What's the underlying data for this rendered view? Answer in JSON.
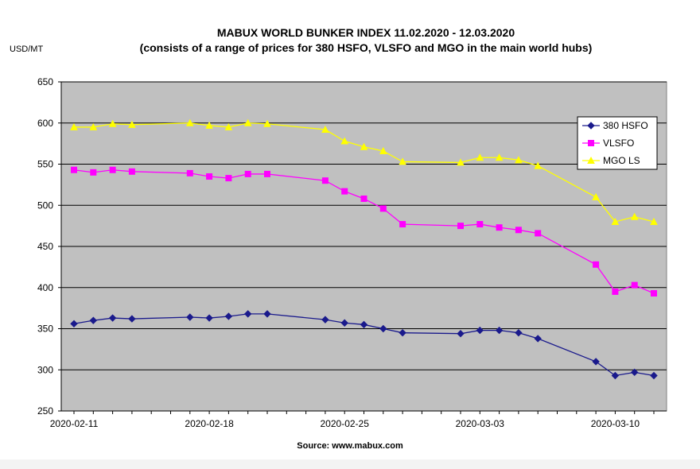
{
  "chart_data": {
    "type": "line",
    "title": "MABUX WORLD BUNKER INDEX 11.02.2020 - 12.03.2020",
    "subtitle": "(consists of a range of prices for 380 HSFO, VLSFO and MGO in the main world hubs)",
    "ylabel": "USD/MT",
    "xlabel": "",
    "ylim": [
      250,
      650
    ],
    "yticks": [
      250,
      300,
      350,
      400,
      450,
      500,
      550,
      600,
      650
    ],
    "x": [
      "2020-02-11",
      "2020-02-12",
      "2020-02-13",
      "2020-02-14",
      "2020-02-17",
      "2020-02-18",
      "2020-02-19",
      "2020-02-20",
      "2020-02-21",
      "2020-02-24",
      "2020-02-25",
      "2020-02-26",
      "2020-02-27",
      "2020-02-28",
      "2020-03-02",
      "2020-03-03",
      "2020-03-04",
      "2020-03-05",
      "2020-03-06",
      "2020-03-09",
      "2020-03-10",
      "2020-03-11",
      "2020-03-12"
    ],
    "xticks": [
      "2020-02-11",
      "2020-02-18",
      "2020-02-25",
      "2020-03-03",
      "2020-03-10"
    ],
    "grid": true,
    "legend_position": "top-right",
    "series": [
      {
        "name": "380 HSFO",
        "color": "#1a1a8c",
        "marker": "diamond",
        "values": [
          356,
          360,
          363,
          362,
          364,
          363,
          365,
          368,
          368,
          361,
          357,
          355,
          350,
          345,
          344,
          348,
          348,
          345,
          338,
          310,
          293,
          297,
          293
        ]
      },
      {
        "name": "VLSFO",
        "color": "#ff00ff",
        "marker": "square",
        "values": [
          543,
          540,
          543,
          541,
          539,
          535,
          533,
          538,
          538,
          530,
          517,
          508,
          496,
          477,
          475,
          477,
          473,
          470,
          466,
          428,
          395,
          403,
          393
        ]
      },
      {
        "name": "MGO LS",
        "color": "#ffff00",
        "marker": "triangle",
        "values": [
          595,
          595,
          599,
          598,
          600,
          597,
          595,
          600,
          599,
          592,
          578,
          571,
          566,
          553,
          552,
          558,
          558,
          555,
          548,
          510,
          480,
          486,
          480
        ]
      }
    ],
    "source": "Source: www.mabux.com",
    "colors": {
      "plot_background": "#c0c0c0",
      "gridline": "#000000"
    }
  }
}
